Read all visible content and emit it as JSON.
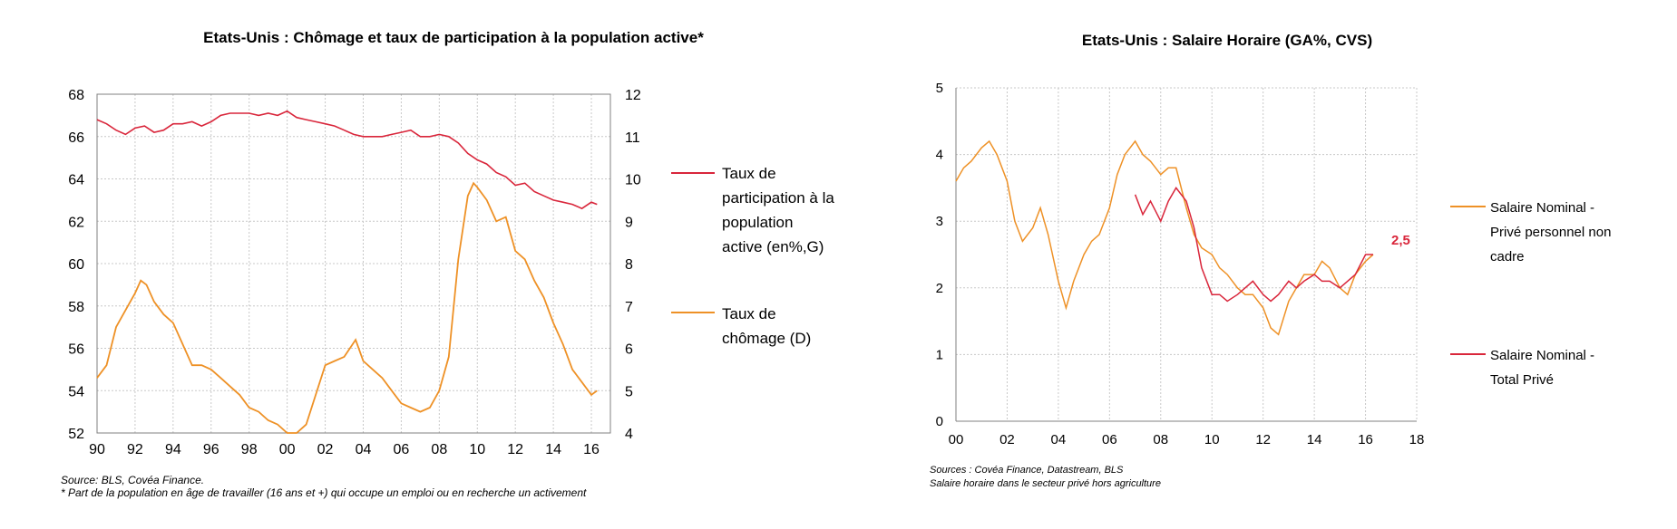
{
  "colors": {
    "participation": "#d9263b",
    "unemployment": "#ee9126",
    "nominal_nonsupervisory": "#ee9126",
    "nominal_total": "#d9263b",
    "grid": "#c8c8c8"
  },
  "chart_data": [
    {
      "type": "line",
      "title": "Etats-Unis : Chômage et taux de participation à la population active*",
      "x_tick_labels": [
        "90",
        "92",
        "94",
        "96",
        "98",
        "00",
        "02",
        "04",
        "06",
        "08",
        "10",
        "12",
        "14",
        "16"
      ],
      "xlim": [
        1990,
        2017
      ],
      "y_left": {
        "lim": [
          52,
          68
        ],
        "ticks": [
          52,
          54,
          56,
          58,
          60,
          62,
          64,
          66,
          68
        ]
      },
      "y_right": {
        "lim": [
          4,
          12
        ],
        "ticks": [
          4,
          5,
          6,
          7,
          8,
          9,
          10,
          11,
          12
        ]
      },
      "grid": true,
      "legend_position": "right",
      "legend": {
        "participation": [
          "Taux de",
          "participation à la",
          "population",
          "active (en%,G)"
        ],
        "unemployment": [
          "Taux de",
          "chômage (D)"
        ]
      },
      "series": [
        {
          "key": "participation",
          "axis": "left",
          "x": [
            1990,
            1990.5,
            1991,
            1991.5,
            1992,
            1992.5,
            1993,
            1993.5,
            1994,
            1994.5,
            1995,
            1995.5,
            1996,
            1996.5,
            1997,
            1997.5,
            1998,
            1998.5,
            1999,
            1999.5,
            2000,
            2000.5,
            2001,
            2001.5,
            2002,
            2002.5,
            2003,
            2003.5,
            2004,
            2004.5,
            2005,
            2005.5,
            2006,
            2006.5,
            2007,
            2007.5,
            2008,
            2008.5,
            2009,
            2009.5,
            2010,
            2010.5,
            2011,
            2011.5,
            2012,
            2012.5,
            2013,
            2013.5,
            2014,
            2014.5,
            2015,
            2015.5,
            2016,
            2016.3
          ],
          "values": [
            66.8,
            66.6,
            66.3,
            66.1,
            66.4,
            66.5,
            66.2,
            66.3,
            66.6,
            66.6,
            66.7,
            66.5,
            66.7,
            67.0,
            67.1,
            67.1,
            67.1,
            67.0,
            67.1,
            67.0,
            67.2,
            66.9,
            66.8,
            66.7,
            66.6,
            66.5,
            66.3,
            66.1,
            66.0,
            66.0,
            66.0,
            66.1,
            66.2,
            66.3,
            66.0,
            66.0,
            66.1,
            66.0,
            65.7,
            65.2,
            64.9,
            64.7,
            64.3,
            64.1,
            63.7,
            63.8,
            63.4,
            63.2,
            63.0,
            62.9,
            62.8,
            62.6,
            62.9,
            62.8
          ]
        },
        {
          "key": "unemployment",
          "axis": "right",
          "x": [
            1990,
            1990.5,
            1991,
            1991.5,
            1992,
            1992.3,
            1992.6,
            1993,
            1993.5,
            1994,
            1994.5,
            1995,
            1995.5,
            1996,
            1996.5,
            1997,
            1997.5,
            1998,
            1998.5,
            1999,
            1999.5,
            2000,
            2000.5,
            2001,
            2001.5,
            2002,
            2002.5,
            2003,
            2003.3,
            2003.6,
            2004,
            2004.5,
            2005,
            2005.5,
            2006,
            2006.5,
            2007,
            2007.5,
            2008,
            2008.5,
            2009,
            2009.5,
            2009.8,
            2010,
            2010.5,
            2011,
            2011.5,
            2012,
            2012.5,
            2013,
            2013.5,
            2014,
            2014.5,
            2015,
            2015.5,
            2016,
            2016.3
          ],
          "values": [
            5.3,
            5.6,
            6.5,
            6.9,
            7.3,
            7.6,
            7.5,
            7.1,
            6.8,
            6.6,
            6.1,
            5.6,
            5.6,
            5.5,
            5.3,
            5.1,
            4.9,
            4.6,
            4.5,
            4.3,
            4.2,
            4.0,
            4.0,
            4.2,
            4.9,
            5.6,
            5.7,
            5.8,
            6.0,
            6.2,
            5.7,
            5.5,
            5.3,
            5.0,
            4.7,
            4.6,
            4.5,
            4.6,
            5.0,
            5.8,
            8.1,
            9.6,
            9.9,
            9.8,
            9.5,
            9.0,
            9.1,
            8.3,
            8.1,
            7.6,
            7.2,
            6.6,
            6.1,
            5.5,
            5.2,
            4.9,
            5.0
          ]
        }
      ],
      "source": "Source:  BLS, Covéa Finance.",
      "footnote": "* Part de la population en âge de travailler (16 ans et +) qui occupe un emploi ou en recherche un activement"
    },
    {
      "type": "line",
      "title": "Etats-Unis : Salaire Horaire (GA%, CVS)",
      "x_tick_labels": [
        "00",
        "02",
        "04",
        "06",
        "08",
        "10",
        "12",
        "14",
        "16",
        "18"
      ],
      "xlim": [
        2000,
        2018
      ],
      "ylim": [
        0,
        5
      ],
      "y_ticks": [
        "0",
        "1",
        "2",
        "3",
        "4",
        "5"
      ],
      "grid": true,
      "legend_position": "right",
      "legend": {
        "nominal_nonsupervisory": [
          "Salaire Nominal -",
          "Privé personnel non",
          "cadre"
        ],
        "nominal_total": [
          "Salaire Nominal -",
          "Total Privé"
        ]
      },
      "annotation": "2,5",
      "series": [
        {
          "key": "nominal_nonsupervisory",
          "x": [
            2000,
            2000.3,
            2000.6,
            2001,
            2001.3,
            2001.6,
            2002,
            2002.3,
            2002.6,
            2003,
            2003.3,
            2003.6,
            2004,
            2004.3,
            2004.6,
            2005,
            2005.3,
            2005.6,
            2006,
            2006.3,
            2006.6,
            2007,
            2007.3,
            2007.6,
            2008,
            2008.3,
            2008.6,
            2009,
            2009.3,
            2009.6,
            2010,
            2010.3,
            2010.6,
            2011,
            2011.3,
            2011.6,
            2012,
            2012.3,
            2012.6,
            2013,
            2013.3,
            2013.6,
            2014,
            2014.3,
            2014.6,
            2015,
            2015.3,
            2015.6,
            2016,
            2016.3
          ],
          "values": [
            3.6,
            3.8,
            3.9,
            4.1,
            4.2,
            4.0,
            3.6,
            3.0,
            2.7,
            2.9,
            3.2,
            2.8,
            2.1,
            1.7,
            2.1,
            2.5,
            2.7,
            2.8,
            3.2,
            3.7,
            4.0,
            4.2,
            4.0,
            3.9,
            3.7,
            3.8,
            3.8,
            3.2,
            2.8,
            2.6,
            2.5,
            2.3,
            2.2,
            2.0,
            1.9,
            1.9,
            1.7,
            1.4,
            1.3,
            1.8,
            2.0,
            2.2,
            2.2,
            2.4,
            2.3,
            2.0,
            1.9,
            2.2,
            2.4,
            2.5
          ]
        },
        {
          "key": "nominal_total",
          "x": [
            2007,
            2007.3,
            2007.6,
            2008,
            2008.3,
            2008.6,
            2009,
            2009.3,
            2009.6,
            2010,
            2010.3,
            2010.6,
            2011,
            2011.3,
            2011.6,
            2012,
            2012.3,
            2012.6,
            2013,
            2013.3,
            2013.6,
            2014,
            2014.3,
            2014.6,
            2015,
            2015.3,
            2015.6,
            2016,
            2016.3
          ],
          "values": [
            3.4,
            3.1,
            3.3,
            3.0,
            3.3,
            3.5,
            3.3,
            2.9,
            2.3,
            1.9,
            1.9,
            1.8,
            1.9,
            2.0,
            2.1,
            1.9,
            1.8,
            1.9,
            2.1,
            2.0,
            2.1,
            2.2,
            2.1,
            2.1,
            2.0,
            2.1,
            2.2,
            2.5,
            2.5
          ]
        }
      ],
      "source": "Sources : Covéa Finance, Datastream, BLS",
      "footnote": "Salaire horaire dans le secteur privé hors agriculture"
    }
  ]
}
